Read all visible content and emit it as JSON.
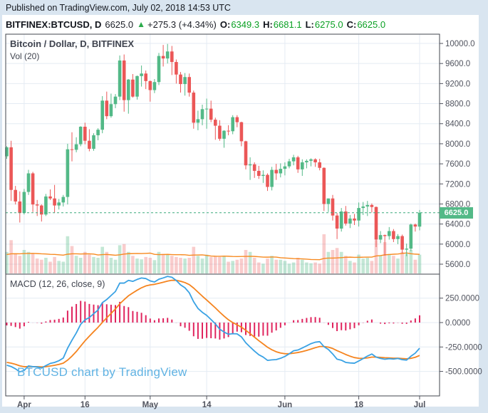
{
  "published_bar": {
    "text": "Published on TradingView.com, July 02, 2018 14:53 UTC"
  },
  "symbol_bar": {
    "symbol": "BITFINEX:BTCUSD, D",
    "last": "6625.0",
    "direction": "▲",
    "change": "+275.3 (+4.34%)",
    "o_label": "O:",
    "o": "6349.3",
    "h_label": "H:",
    "h": "6681.1",
    "l_label": "L:",
    "l": "6275.0",
    "c_label": "C:",
    "c": "6625.0"
  },
  "main_chart": {
    "legend_title": "Bitcoin / Dollar, D, BITFINEX",
    "legend_vol": "Vol (20)",
    "last_price_label": "6625.0",
    "price_axis": {
      "ticks": [
        {
          "label": "10000.0",
          "value": 10000
        },
        {
          "label": "9600.0",
          "value": 9600
        },
        {
          "label": "9200.0",
          "value": 9200
        },
        {
          "label": "8800.0",
          "value": 8800
        },
        {
          "label": "8400.0",
          "value": 8400
        },
        {
          "label": "8000.0",
          "value": 8000
        },
        {
          "label": "7600.0",
          "value": 7600
        },
        {
          "label": "7200.0",
          "value": 7200
        },
        {
          "label": "6800.0",
          "value": 6800
        },
        {
          "label": "6400.0",
          "value": 6400
        },
        {
          "label": "6000.0",
          "value": 6000
        },
        {
          "label": "5600.0",
          "value": 5600
        }
      ]
    }
  },
  "macd_panel": {
    "legend": "MACD (12, 26, close, 9)",
    "ticks": [
      {
        "label": "250.0000",
        "value": 250
      },
      {
        "label": "0.0000",
        "value": 0
      },
      {
        "label": "-250.0000",
        "value": -250
      },
      {
        "label": "-500.0000",
        "value": -500
      }
    ]
  },
  "time_axis": {
    "labels": [
      {
        "label": "Apr",
        "day": 4
      },
      {
        "label": "16",
        "day": 18
      },
      {
        "label": "May",
        "day": 33
      },
      {
        "label": "14",
        "day": 46
      },
      {
        "label": "Jun",
        "day": 64
      },
      {
        "label": "18",
        "day": 81
      },
      {
        "label": "Jul",
        "day": 95
      }
    ]
  },
  "watermark": "BTCUSD chart by TradingView",
  "colors": {
    "candle_up": "#53b987",
    "candle_down": "#eb5757",
    "vol_up": "rgba(83,185,135,0.35)",
    "vol_down": "rgba(235,87,87,0.30)",
    "vol_ma": "#f78a20",
    "macd_line": "#3aa2e4",
    "signal_line": "#f5841f",
    "histogram": "#e0245e",
    "price_label_bg": "#53b987",
    "price_line": "#3cab7d",
    "link_blue": "#61b3e3",
    "green_text": "#0aa023",
    "arrow_up": "#2bab4b",
    "grid": "#e4ebf3",
    "pane_border": "#42464e",
    "axis_text": "#50535e"
  },
  "chart_data": {
    "type": "candlestick+volume+macd",
    "title": "Bitcoin / Dollar, D, BITFINEX",
    "start_date": "2018-03-29",
    "end_date": "2018-07-02",
    "price_ylim": [
      5400,
      10190
    ],
    "macd_ylim": [
      -750,
      495
    ],
    "candles_ohlc": [
      [
        7750,
        7950,
        7700,
        7930
      ],
      [
        7930,
        8060,
        6860,
        7080
      ],
      [
        7080,
        7160,
        6790,
        6850
      ],
      [
        6850,
        7050,
        6430,
        6620
      ],
      [
        6620,
        7100,
        6590,
        7040
      ],
      [
        7040,
        7480,
        6980,
        7410
      ],
      [
        7410,
        7440,
        6640,
        6790
      ],
      [
        6790,
        6880,
        6560,
        6770
      ],
      [
        6770,
        6790,
        6450,
        6590
      ],
      [
        6590,
        7000,
        6560,
        6950
      ],
      [
        6950,
        7090,
        6880,
        6910
      ],
      [
        6910,
        7180,
        6620,
        6770
      ],
      [
        6770,
        6900,
        6690,
        6830
      ],
      [
        6830,
        6980,
        6750,
        6940
      ],
      [
        6940,
        8000,
        6790,
        7890
      ],
      [
        7890,
        8230,
        7650,
        7880
      ],
      [
        7880,
        8130,
        7830,
        7990
      ],
      [
        7990,
        8350,
        7950,
        8340
      ],
      [
        8340,
        8420,
        7990,
        8060
      ],
      [
        8060,
        8290,
        7850,
        7900
      ],
      [
        7900,
        8210,
        7860,
        8170
      ],
      [
        8170,
        8310,
        8070,
        8280
      ],
      [
        8280,
        8950,
        8210,
        8860
      ],
      [
        8860,
        9040,
        8490,
        8550
      ],
      [
        8550,
        9000,
        8520,
        8790
      ],
      [
        8790,
        8990,
        8710,
        8940
      ],
      [
        8940,
        9760,
        8870,
        9660
      ],
      [
        9660,
        9780,
        8640,
        8870
      ],
      [
        8870,
        9290,
        8600,
        9280
      ],
      [
        9280,
        9390,
        8920,
        8940
      ],
      [
        8940,
        9360,
        8880,
        9350
      ],
      [
        9350,
        9560,
        9140,
        9400
      ],
      [
        9400,
        9460,
        9090,
        9250
      ],
      [
        9250,
        9260,
        8840,
        9070
      ],
      [
        9070,
        9290,
        9010,
        9230
      ],
      [
        9230,
        9810,
        9170,
        9750
      ],
      [
        9750,
        9970,
        9540,
        9700
      ],
      [
        9700,
        9990,
        9600,
        9840
      ],
      [
        9840,
        9950,
        9370,
        9630
      ],
      [
        9630,
        9680,
        9200,
        9380
      ],
      [
        9380,
        9430,
        9020,
        9190
      ],
      [
        9190,
        9410,
        8960,
        9330
      ],
      [
        9330,
        9400,
        8940,
        9020
      ],
      [
        9020,
        9060,
        8300,
        8420
      ],
      [
        8420,
        8660,
        8270,
        8490
      ],
      [
        8490,
        8780,
        8370,
        8690
      ],
      [
        8690,
        8900,
        8300,
        8700
      ],
      [
        8700,
        8860,
        8430,
        8480
      ],
      [
        8480,
        8520,
        8080,
        8360
      ],
      [
        8360,
        8470,
        8060,
        8100
      ],
      [
        8100,
        8270,
        7920,
        8260
      ],
      [
        8260,
        8370,
        8170,
        8250
      ],
      [
        8250,
        8570,
        8190,
        8530
      ],
      [
        8530,
        8570,
        8330,
        8430
      ],
      [
        8430,
        8440,
        7950,
        8050
      ],
      [
        8050,
        8060,
        7490,
        7570
      ],
      [
        7570,
        7730,
        7280,
        7590
      ],
      [
        7590,
        7630,
        7320,
        7460
      ],
      [
        7460,
        7560,
        7300,
        7360
      ],
      [
        7360,
        7470,
        7220,
        7380
      ],
      [
        7380,
        7410,
        7060,
        7140
      ],
      [
        7140,
        7540,
        7070,
        7480
      ],
      [
        7480,
        7600,
        7280,
        7410
      ],
      [
        7410,
        7610,
        7330,
        7500
      ],
      [
        7500,
        7630,
        7370,
        7550
      ],
      [
        7550,
        7700,
        7510,
        7650
      ],
      [
        7650,
        7780,
        7570,
        7730
      ],
      [
        7730,
        7760,
        7420,
        7490
      ],
      [
        7490,
        7690,
        7360,
        7630
      ],
      [
        7630,
        7690,
        7510,
        7660
      ],
      [
        7660,
        7710,
        7550,
        7690
      ],
      [
        7690,
        7710,
        7540,
        7630
      ],
      [
        7630,
        7700,
        7470,
        7520
      ],
      [
        7520,
        7530,
        6660,
        6800
      ],
      [
        6800,
        6910,
        6640,
        6910
      ],
      [
        6910,
        6980,
        6470,
        6570
      ],
      [
        6570,
        6620,
        6100,
        6310
      ],
      [
        6310,
        6720,
        6250,
        6650
      ],
      [
        6650,
        6760,
        6370,
        6410
      ],
      [
        6410,
        6580,
        6320,
        6510
      ],
      [
        6510,
        6600,
        6380,
        6470
      ],
      [
        6470,
        6830,
        6350,
        6720
      ],
      [
        6720,
        6840,
        6580,
        6750
      ],
      [
        6750,
        6860,
        6560,
        6780
      ],
      [
        6780,
        6810,
        6630,
        6740
      ],
      [
        6740,
        6750,
        5940,
        6090
      ],
      [
        6090,
        6260,
        6020,
        6180
      ],
      [
        6180,
        6190,
        5770,
        6160
      ],
      [
        6160,
        6340,
        6090,
        6260
      ],
      [
        6260,
        6300,
        6040,
        6100
      ],
      [
        6100,
        6200,
        6000,
        6160
      ],
      [
        6160,
        6190,
        5820,
        5890
      ],
      [
        5890,
        6010,
        5760,
        5910
      ],
      [
        5910,
        6410,
        5860,
        6390
      ],
      [
        6390,
        6410,
        6250,
        6350
      ],
      [
        6349,
        6681,
        6275,
        6625
      ]
    ],
    "volume_relative": [
      55,
      85,
      50,
      45,
      60,
      55,
      50,
      38,
      35,
      40,
      30,
      42,
      32,
      30,
      95,
      70,
      45,
      40,
      55,
      48,
      42,
      40,
      68,
      55,
      40,
      35,
      72,
      75,
      55,
      45,
      38,
      36,
      42,
      40,
      34,
      55,
      50,
      48,
      45,
      42,
      40,
      38,
      40,
      68,
      45,
      38,
      48,
      42,
      45,
      42,
      45,
      30,
      32,
      35,
      38,
      60,
      55,
      40,
      28,
      25,
      38,
      45,
      35,
      35,
      32,
      25,
      28,
      40,
      35,
      28,
      26,
      28,
      25,
      100,
      55,
      60,
      65,
      55,
      45,
      32,
      28,
      48,
      38,
      40,
      32,
      85,
      45,
      80,
      50,
      45,
      38,
      55,
      50,
      60,
      35,
      48
    ],
    "volume_ma_period": 20,
    "macd": {
      "fast": 12,
      "slow": 26,
      "signal": 9,
      "source": "close",
      "seed_ema_fast": 7600,
      "seed_ema_slow": 8100,
      "seed_signal": -400
    },
    "last_price": 6625.0
  }
}
